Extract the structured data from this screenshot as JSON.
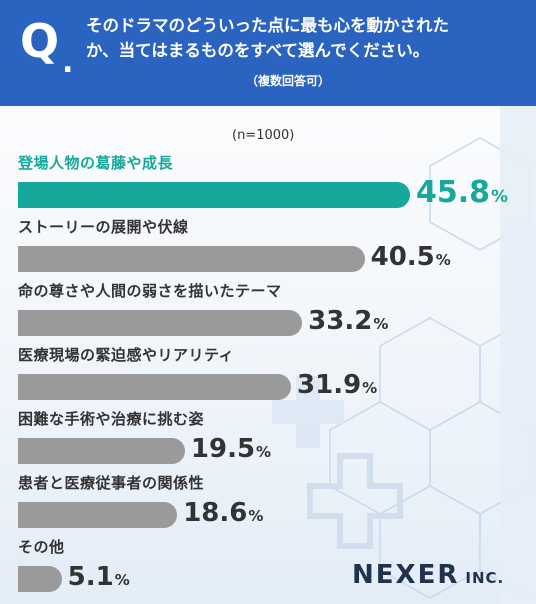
{
  "header": {
    "q_letter": "Q",
    "q_dot": ".",
    "question_line1": "そのドラマのどういった点に最も心を動かされた",
    "question_line2": "か、当てはまるものをすべて選んでください。",
    "sub": "（複数回答可）"
  },
  "sample_size": "(n=1000)",
  "unit": "%",
  "brand": {
    "name": "NEXER",
    "suffix": "INC."
  },
  "colors": {
    "highlight": "#16a89a",
    "bar": "#9a9a9a",
    "header": "#2a63c0",
    "text": "#333333"
  },
  "chart_data": {
    "type": "bar",
    "orientation": "horizontal",
    "categories": [
      "登場人物の葛藤や成長",
      "ストーリーの展開や伏線",
      "命の尊さや人間の弱さを描いたテーマ",
      "医療現場の緊迫感やリアリティ",
      "困難な手術や治療に挑む姿",
      "患者と医療従事者の関係性",
      "その他"
    ],
    "values": [
      45.8,
      40.5,
      33.2,
      31.9,
      19.5,
      18.6,
      5.1
    ],
    "value_labels": [
      "45.8",
      "40.5",
      "33.2",
      "31.9",
      "19.5",
      "18.6",
      "5.1"
    ],
    "highlight_index": 0
  }
}
